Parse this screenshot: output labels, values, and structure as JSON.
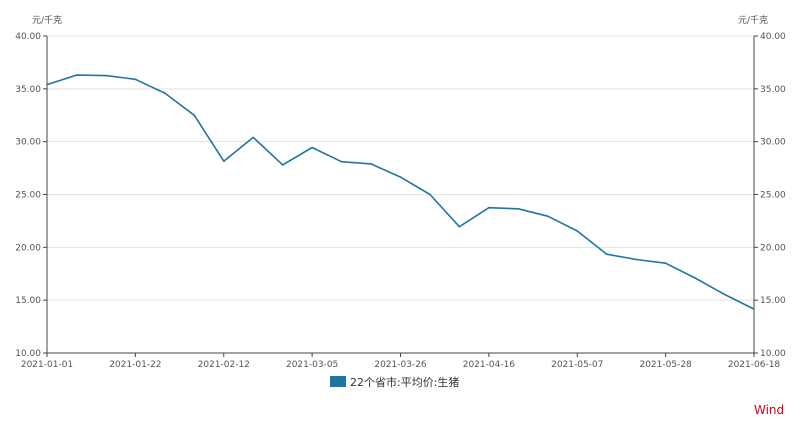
{
  "chart_data": {
    "type": "line",
    "title": "",
    "y_unit_left": "元/千克",
    "y_unit_right": "元/千克",
    "ylim": [
      10,
      40
    ],
    "y_ticks": [
      "10.00",
      "15.00",
      "20.00",
      "25.00",
      "30.00",
      "35.00",
      "40.00"
    ],
    "x_tick_labels": [
      "2021-01-01",
      "2021-01-22",
      "2021-02-12",
      "2021-03-05",
      "2021-03-26",
      "2021-04-16",
      "2021-05-07",
      "2021-05-28",
      "2021-06-18"
    ],
    "grid": true,
    "legend_position": "bottom",
    "series": [
      {
        "name": "22个省市:平均价:生猪",
        "color": "#1f77a0",
        "x": [
          "2021-01-01",
          "2021-01-08",
          "2021-01-15",
          "2021-01-22",
          "2021-01-29",
          "2021-02-05",
          "2021-02-12",
          "2021-02-19",
          "2021-02-26",
          "2021-03-05",
          "2021-03-12",
          "2021-03-19",
          "2021-03-26",
          "2021-04-02",
          "2021-04-09",
          "2021-04-16",
          "2021-04-23",
          "2021-04-30",
          "2021-05-07",
          "2021-05-14",
          "2021-05-21",
          "2021-05-28",
          "2021-06-04",
          "2021-06-11",
          "2021-06-18"
        ],
        "values": [
          35.4,
          36.3,
          36.25,
          35.9,
          34.6,
          32.5,
          28.15,
          30.4,
          27.8,
          29.45,
          28.1,
          27.9,
          26.65,
          25.0,
          21.95,
          23.75,
          23.65,
          22.95,
          21.55,
          19.35,
          18.85,
          18.5,
          17.1,
          15.55,
          14.15
        ]
      }
    ]
  },
  "watermark": "Wind"
}
